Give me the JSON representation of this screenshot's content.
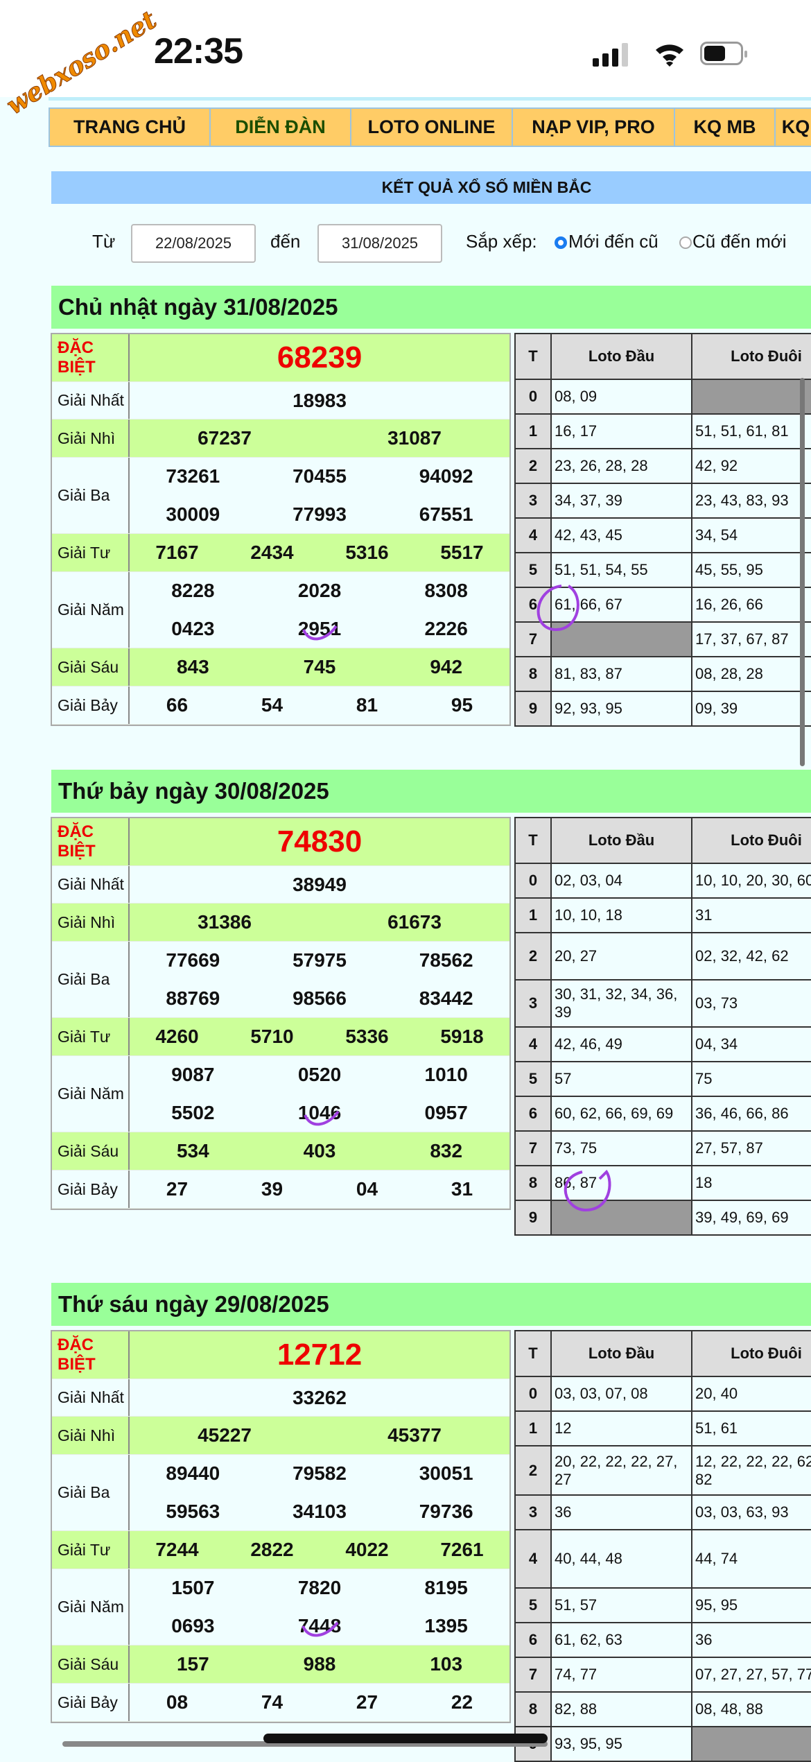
{
  "status_bar": {
    "time": "22:35",
    "watermark": "webxoso.net"
  },
  "nav": {
    "items": [
      {
        "label": "TRANG CHỦ",
        "color": "#111111"
      },
      {
        "label": "DIỄN ĐÀN",
        "color": "#1a4d00"
      },
      {
        "label": "LOTO ONLINE",
        "color": "#111111"
      },
      {
        "label": "NẠP VIP, PRO",
        "color": "#111111"
      },
      {
        "label": "KQ MB",
        "color": "#111111"
      },
      {
        "label": "KQ",
        "color": "#111111"
      }
    ]
  },
  "page_title": "KẾT QUẢ XỔ SỐ MIỀN BẮC",
  "filter": {
    "from_label": "Từ",
    "from_value": "22/08/2025",
    "to_label": "đến",
    "to_value": "31/08/2025",
    "sort_label": "Sắp xếp:",
    "sort_options": [
      {
        "label": "Mới đến cũ",
        "selected": true
      },
      {
        "label": "Cũ đến mới",
        "selected": false
      }
    ]
  },
  "colors": {
    "special": "#ee0000",
    "green_row": "#ccff99",
    "title_green": "#99ff99",
    "header_blue": "#99ccff",
    "nav_orange": "#ffcc66"
  },
  "days": [
    {
      "title": "Chủ nhật ngày 31/08/2025",
      "prizes": [
        {
          "label": "ĐẶC BIỆT",
          "lines": [
            [
              "68239"
            ]
          ]
        },
        {
          "label": "Giải Nhất",
          "lines": [
            [
              "18983"
            ]
          ]
        },
        {
          "label": "Giải Nhì",
          "lines": [
            [
              "67237",
              "31087"
            ]
          ]
        },
        {
          "label": "Giải Ba",
          "lines": [
            [
              "73261",
              "70455",
              "94092"
            ],
            [
              "30009",
              "77993",
              "67551"
            ]
          ]
        },
        {
          "label": "Giải Tư",
          "lines": [
            [
              "7167",
              "2434",
              "5316",
              "5517"
            ]
          ]
        },
        {
          "label": "Giải Năm",
          "lines": [
            [
              "8228",
              "2028",
              "8308"
            ],
            [
              "0423",
              "2951",
              "2226"
            ]
          ]
        },
        {
          "label": "Giải Sáu",
          "lines": [
            [
              "843",
              "745",
              "942"
            ]
          ]
        },
        {
          "label": "Giải Bảy",
          "lines": [
            [
              "66",
              "54",
              "81",
              "95"
            ]
          ]
        }
      ],
      "loto": {
        "headers": [
          "T",
          "Loto Đầu",
          "Loto Đuôi"
        ],
        "rows": [
          [
            "0",
            "08, 09",
            ""
          ],
          [
            "1",
            "16, 17",
            "51, 51, 61, 81"
          ],
          [
            "2",
            "23, 26, 28, 28",
            "42, 92"
          ],
          [
            "3",
            "34, 37, 39",
            "23, 43, 83, 93"
          ],
          [
            "4",
            "42, 43, 45",
            "34, 54"
          ],
          [
            "5",
            "51, 51, 54, 55",
            "45, 55, 95"
          ],
          [
            "6",
            "61, 66, 67",
            "16, 26, 66"
          ],
          [
            "7",
            "",
            "17, 37, 67, 87"
          ],
          [
            "8",
            "81, 83, 87",
            "08, 28, 28"
          ],
          [
            "9",
            "92, 93, 95",
            "09, 39"
          ]
        ]
      }
    },
    {
      "title": "Thứ bảy ngày 30/08/2025",
      "prizes": [
        {
          "label": "ĐẶC BIỆT",
          "lines": [
            [
              "74830"
            ]
          ]
        },
        {
          "label": "Giải Nhất",
          "lines": [
            [
              "38949"
            ]
          ]
        },
        {
          "label": "Giải Nhì",
          "lines": [
            [
              "31386",
              "61673"
            ]
          ]
        },
        {
          "label": "Giải Ba",
          "lines": [
            [
              "77669",
              "57975",
              "78562"
            ],
            [
              "88769",
              "98566",
              "83442"
            ]
          ]
        },
        {
          "label": "Giải Tư",
          "lines": [
            [
              "4260",
              "5710",
              "5336",
              "5918"
            ]
          ]
        },
        {
          "label": "Giải Năm",
          "lines": [
            [
              "9087",
              "0520",
              "1010"
            ],
            [
              "5502",
              "1046",
              "0957"
            ]
          ]
        },
        {
          "label": "Giải Sáu",
          "lines": [
            [
              "534",
              "403",
              "832"
            ]
          ]
        },
        {
          "label": "Giải Bảy",
          "lines": [
            [
              "27",
              "39",
              "04",
              "31"
            ]
          ]
        }
      ],
      "loto": {
        "headers": [
          "T",
          "Loto Đầu",
          "Loto Đuôi"
        ],
        "rows": [
          [
            "0",
            "02, 03, 04",
            "10, 10, 20, 30, 60"
          ],
          [
            "1",
            "10, 10, 18",
            "31"
          ],
          [
            "2",
            "20, 27",
            "02, 32, 42, 62"
          ],
          [
            "3",
            "30, 31, 32, 34, 36, 39",
            "03, 73"
          ],
          [
            "4",
            "42, 46, 49",
            "04, 34"
          ],
          [
            "5",
            "57",
            "75"
          ],
          [
            "6",
            "60, 62, 66, 69, 69",
            "36, 46, 66, 86"
          ],
          [
            "7",
            "73, 75",
            "27, 57, 87"
          ],
          [
            "8",
            "86, 87",
            "18"
          ],
          [
            "9",
            "",
            "39, 49, 69, 69"
          ]
        ]
      }
    },
    {
      "title": "Thứ sáu ngày 29/08/2025",
      "prizes": [
        {
          "label": "ĐẶC BIỆT",
          "lines": [
            [
              "12712"
            ]
          ]
        },
        {
          "label": "Giải Nhất",
          "lines": [
            [
              "33262"
            ]
          ]
        },
        {
          "label": "Giải Nhì",
          "lines": [
            [
              "45227",
              "45377"
            ]
          ]
        },
        {
          "label": "Giải Ba",
          "lines": [
            [
              "89440",
              "79582",
              "30051"
            ],
            [
              "59563",
              "34103",
              "79736"
            ]
          ]
        },
        {
          "label": "Giải Tư",
          "lines": [
            [
              "7244",
              "2822",
              "4022",
              "7261"
            ]
          ]
        },
        {
          "label": "Giải Năm",
          "lines": [
            [
              "1507",
              "7820",
              "8195"
            ],
            [
              "0693",
              "7448",
              "1395"
            ]
          ]
        },
        {
          "label": "Giải Sáu",
          "lines": [
            [
              "157",
              "988",
              "103"
            ]
          ]
        },
        {
          "label": "Giải Bảy",
          "lines": [
            [
              "08",
              "74",
              "27",
              "22"
            ]
          ]
        }
      ],
      "loto": {
        "headers": [
          "T",
          "Loto Đầu",
          "Loto Đuôi"
        ],
        "rows": [
          [
            "0",
            "03, 03, 07, 08",
            "20, 40"
          ],
          [
            "1",
            "12",
            "51, 61"
          ],
          [
            "2",
            "20, 22, 22, 22, 27, 27",
            "12, 22, 22, 22, 62, 82"
          ],
          [
            "3",
            "36",
            "03, 03, 63, 93"
          ],
          [
            "4",
            "40, 44, 48",
            "44, 74"
          ],
          [
            "5",
            "51, 57",
            "95, 95"
          ],
          [
            "6",
            "61, 62, 63",
            "36"
          ],
          [
            "7",
            "74, 77",
            "07, 27, 27, 57, 77"
          ],
          [
            "8",
            "82, 88",
            "08, 48, 88"
          ],
          [
            "9",
            "93, 95, 95",
            ""
          ]
        ]
      }
    }
  ]
}
